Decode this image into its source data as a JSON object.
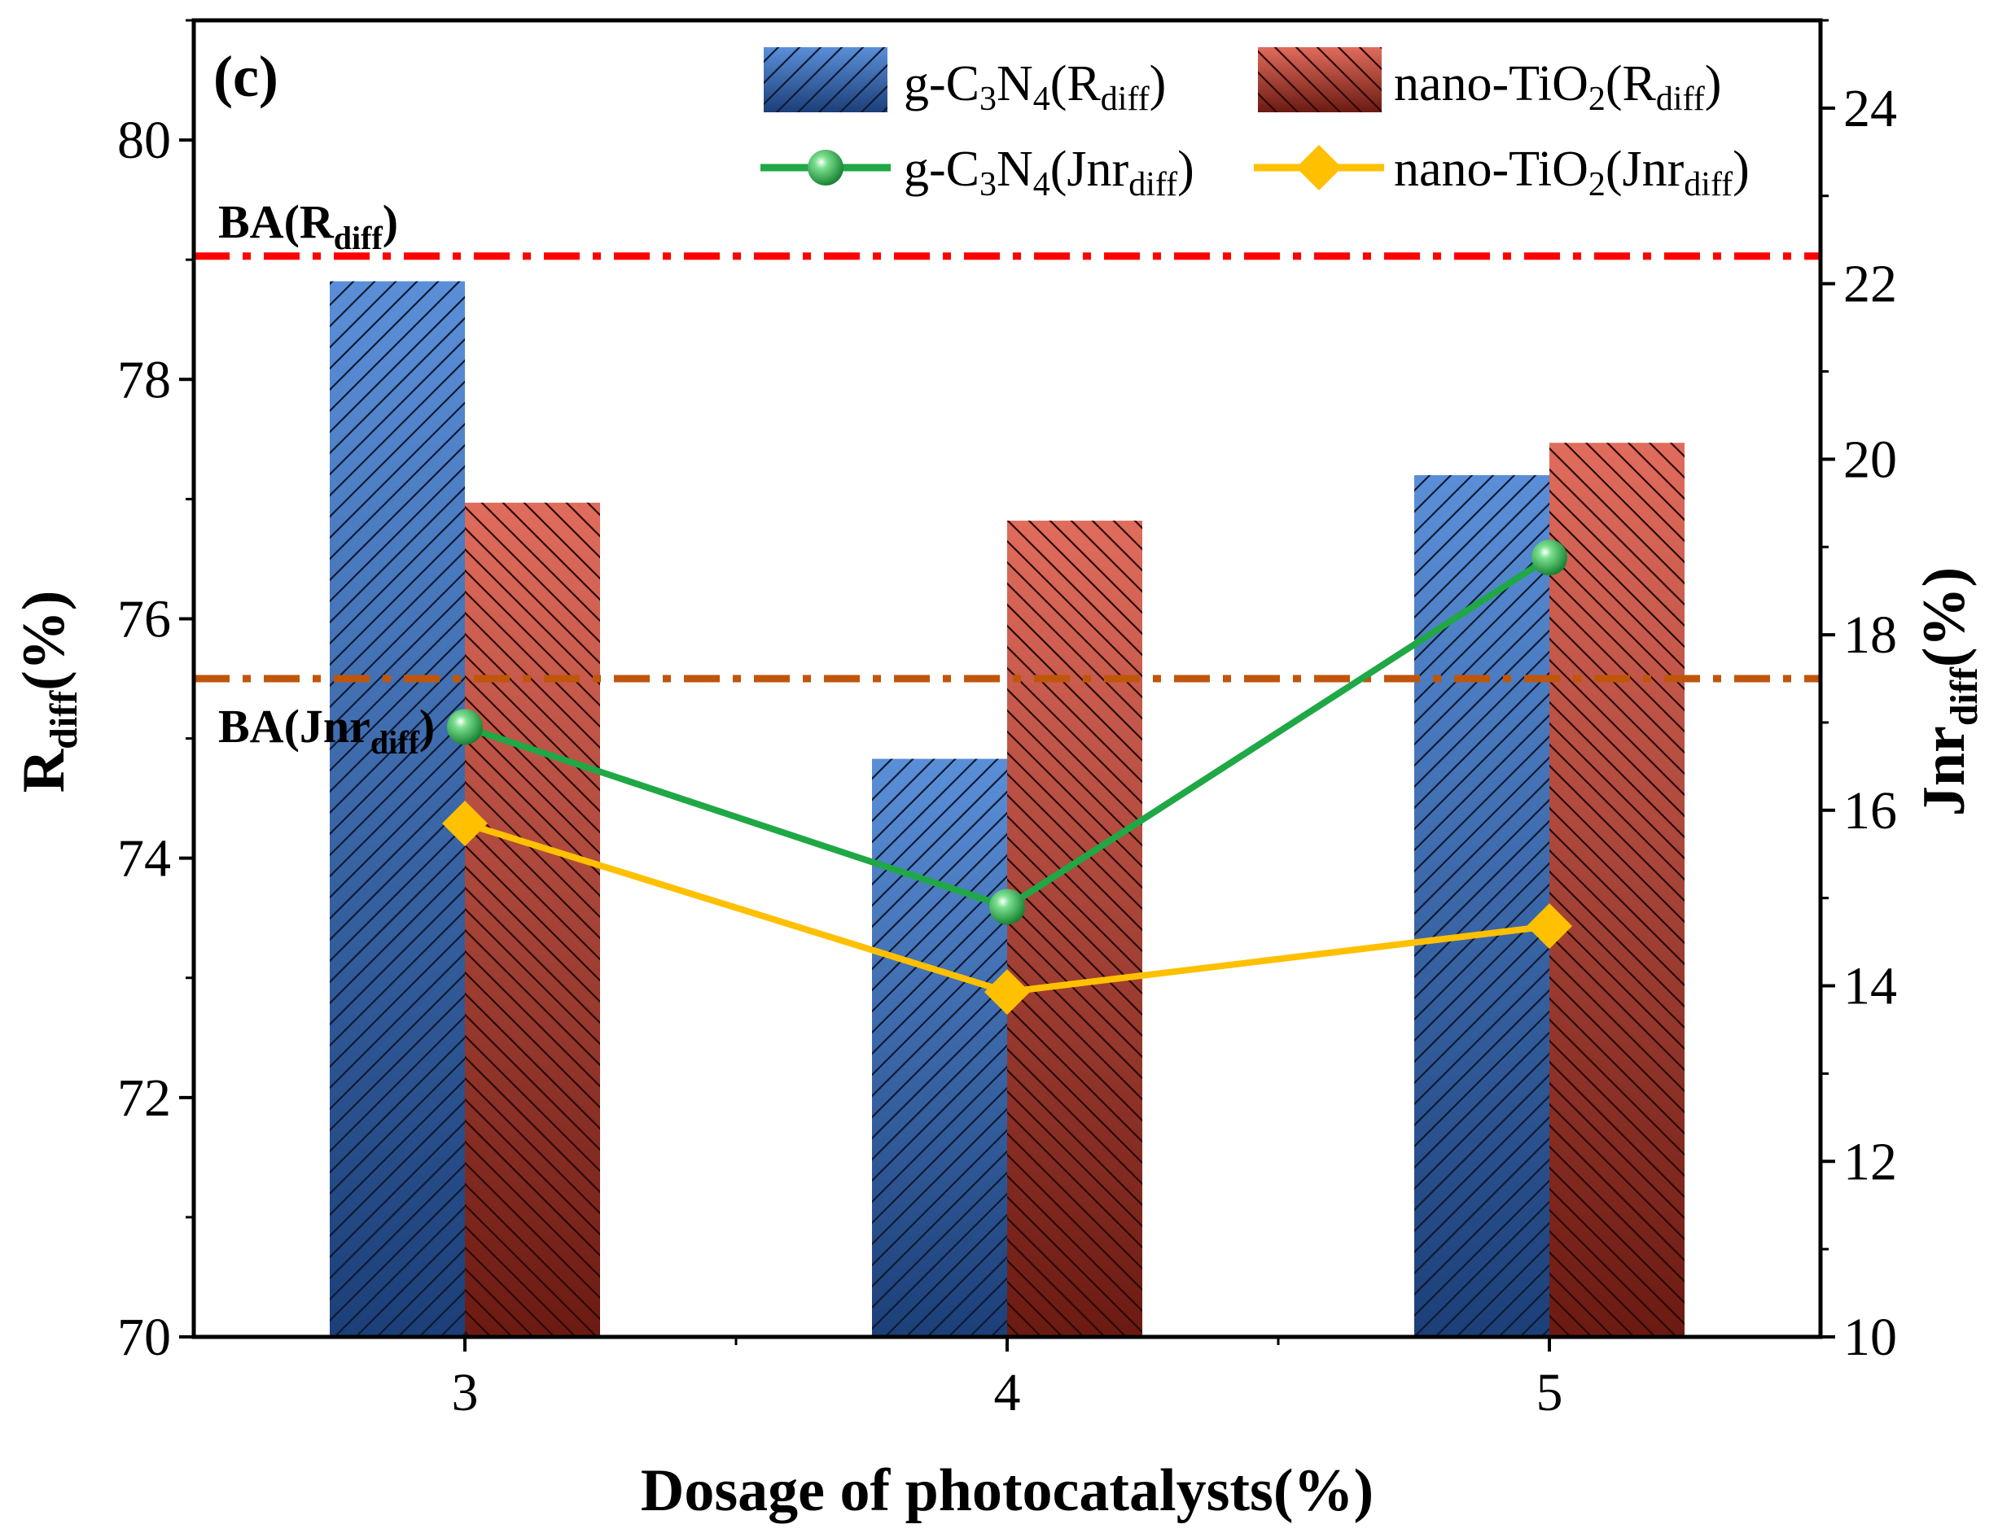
{
  "chart_data": {
    "type": "bar",
    "panel_label": "(c)",
    "categories": [
      "3",
      "4",
      "5"
    ],
    "xlabel": "Dosage of photocatalysts(%)",
    "ylabel": {
      "main": "R",
      "sub": "diff",
      "tail": "(%)"
    },
    "y2label": {
      "main": "Jnr",
      "sub": "diff",
      "tail": "(%)"
    },
    "ylim": [
      70,
      81
    ],
    "y2lim": [
      10,
      25
    ],
    "yticks": [
      "70",
      "72",
      "74",
      "76",
      "78",
      "80"
    ],
    "y2ticks": [
      "10",
      "12",
      "14",
      "16",
      "18",
      "20",
      "22",
      "24"
    ],
    "bar_series": [
      {
        "name": "g-C3N4(Rdiff)",
        "values": [
          78.82,
          74.83,
          77.2
        ],
        "axis": "left",
        "color_top": "#5a8fd8",
        "color_bottom": "#1c3f78"
      },
      {
        "name": "nano-TiO2(Rdiff)",
        "values": [
          76.97,
          76.82,
          77.47
        ],
        "axis": "left",
        "color_top": "#e06c5c",
        "color_bottom": "#6b1a12"
      }
    ],
    "line_series": [
      {
        "name": "g-C3N4(Jnrdiff)",
        "values": [
          16.95,
          14.9,
          18.88
        ],
        "axis": "right",
        "color": "#1fa845",
        "marker": "circle"
      },
      {
        "name": "nano-TiO2(Jnrdiff)",
        "values": [
          15.85,
          13.93,
          14.68
        ],
        "axis": "right",
        "color": "#ffc000",
        "marker": "diamond"
      }
    ],
    "reference_lines": [
      {
        "label": "BA",
        "label_sub": "Rdiff",
        "axis": "left",
        "value": 79.03,
        "color": "#ff0000"
      },
      {
        "label": "BA",
        "label_sub": "Jnrdiff",
        "axis": "right",
        "value": 17.5,
        "color": "#c0560b"
      }
    ],
    "legend": {
      "position": "top-right",
      "entries": [
        {
          "pre": "g-C",
          "s1": "3",
          "mid": "N",
          "s2": "4",
          "open": "(R",
          "s3": "diff",
          "close": ")"
        },
        {
          "pre": "nano-TiO",
          "s1": "2",
          "mid": "",
          "s2": "",
          "open": "(R",
          "s3": "diff",
          "close": ")"
        },
        {
          "pre": "g-C",
          "s1": "3",
          "mid": "N",
          "s2": "4",
          "open": "(Jnr",
          "s3": "diff",
          "close": ")"
        },
        {
          "pre": "nano-TiO",
          "s1": "2",
          "mid": "",
          "s2": "",
          "open": "(Jnr",
          "s3": "diff",
          "close": ")"
        }
      ]
    },
    "ref_labels": [
      {
        "main": "BA(R",
        "sub": "diff",
        "tail": ")"
      },
      {
        "main": "BA(Jnr",
        "sub": "diff",
        "tail": ")"
      }
    ]
  }
}
